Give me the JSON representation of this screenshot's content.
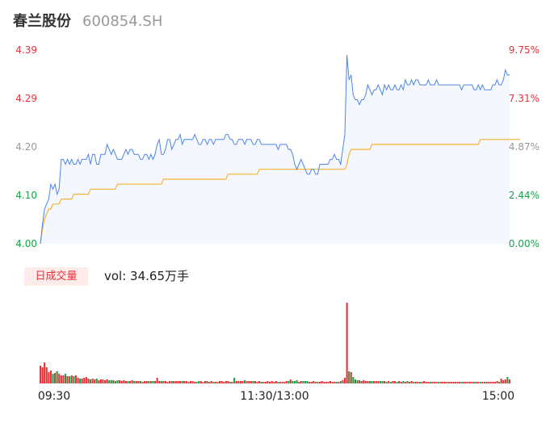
{
  "header": {
    "name": "春兰股份",
    "code": "600854.SH"
  },
  "volume_panel": {
    "tag": "日成交量",
    "vol_label": "vol: 34.65万手"
  },
  "colors": {
    "price_line": "#4f86e6",
    "avg_line": "#f5b335",
    "area_fill": "#f4f7fd",
    "up": "#e8333a",
    "down": "#16a34a",
    "neutral": "#999999"
  },
  "chart_data": {
    "type": "line",
    "prev_close": 4.0,
    "y_ticks_left": [
      "4.39",
      "4.29",
      "4.20",
      "4.10",
      "4.00"
    ],
    "y_ticks_right": [
      "9.75%",
      "7.31%",
      "4.87%",
      "2.44%",
      "0.00%"
    ],
    "ylim": [
      4.0,
      4.39
    ],
    "time_labels": [
      "09:30",
      "11:30/13:00",
      "15:00"
    ],
    "series": [
      {
        "name": "price",
        "values": [
          4.0,
          4.04,
          4.07,
          4.08,
          4.09,
          4.12,
          4.11,
          4.12,
          4.1,
          4.11,
          4.17,
          4.17,
          4.16,
          4.17,
          4.16,
          4.17,
          4.16,
          4.16,
          4.17,
          4.16,
          4.17,
          4.17,
          4.17,
          4.18,
          4.16,
          4.18,
          4.18,
          4.16,
          4.16,
          4.18,
          4.18,
          4.18,
          4.2,
          4.19,
          4.18,
          4.19,
          4.18,
          4.17,
          4.17,
          4.17,
          4.18,
          4.19,
          4.18,
          4.19,
          4.19,
          4.18,
          4.18,
          4.18,
          4.17,
          4.17,
          4.18,
          4.18,
          4.17,
          4.18,
          4.17,
          4.18,
          4.2,
          4.21,
          4.18,
          4.18,
          4.19,
          4.21,
          4.21,
          4.19,
          4.2,
          4.21,
          4.21,
          4.22,
          4.2,
          4.21,
          4.21,
          4.21,
          4.21,
          4.21,
          4.22,
          4.21,
          4.2,
          4.2,
          4.21,
          4.21,
          4.2,
          4.21,
          4.21,
          4.2,
          4.21,
          4.21,
          4.21,
          4.21,
          4.21,
          4.22,
          4.22,
          4.21,
          4.21,
          4.2,
          4.2,
          4.21,
          4.21,
          4.21,
          4.2,
          4.21,
          4.21,
          4.21,
          4.2,
          4.2,
          4.21,
          4.21,
          4.2,
          4.2,
          4.2,
          4.2,
          4.2,
          4.2,
          4.2,
          4.2,
          4.19,
          4.2,
          4.2,
          4.2,
          4.2,
          4.19,
          4.19,
          4.18,
          4.16,
          4.15,
          4.16,
          4.17,
          4.16,
          4.15,
          4.14,
          4.14,
          4.15,
          4.15,
          4.14,
          4.14,
          4.16,
          4.16,
          4.16,
          4.16,
          4.16,
          4.17,
          4.17,
          4.18,
          4.17,
          4.17,
          4.16,
          4.19,
          4.22,
          4.38,
          4.33,
          4.34,
          4.3,
          4.29,
          4.29,
          4.28,
          4.29,
          4.29,
          4.3,
          4.32,
          4.31,
          4.3,
          4.31,
          4.31,
          4.32,
          4.31,
          4.3,
          4.32,
          4.31,
          4.32,
          4.31,
          4.31,
          4.32,
          4.31,
          4.31,
          4.32,
          4.31,
          4.33,
          4.32,
          4.32,
          4.33,
          4.32,
          4.33,
          4.33,
          4.32,
          4.32,
          4.32,
          4.32,
          4.33,
          4.32,
          4.32,
          4.32,
          4.33,
          4.32,
          4.32,
          4.32,
          4.32,
          4.32,
          4.32,
          4.32,
          4.32,
          4.32,
          4.32,
          4.32,
          4.31,
          4.32,
          4.32,
          4.32,
          4.32,
          4.32,
          4.31,
          4.31,
          4.32,
          4.31,
          4.32,
          4.31,
          4.31,
          4.31,
          4.31,
          4.32,
          4.32,
          4.33,
          4.32,
          4.32,
          4.33,
          4.35,
          4.34,
          4.34
        ]
      },
      {
        "name": "average",
        "values": [
          4.0,
          4.03,
          4.05,
          4.06,
          4.07,
          4.07,
          4.08,
          4.08,
          4.08,
          4.08,
          4.09,
          4.09,
          4.09,
          4.09,
          4.09,
          4.09,
          4.1,
          4.1,
          4.1,
          4.1,
          4.1,
          4.1,
          4.1,
          4.1,
          4.11,
          4.11,
          4.11,
          4.11,
          4.11,
          4.11,
          4.11,
          4.11,
          4.11,
          4.11,
          4.11,
          4.11,
          4.11,
          4.12,
          4.12,
          4.12,
          4.12,
          4.12,
          4.12,
          4.12,
          4.12,
          4.12,
          4.12,
          4.12,
          4.12,
          4.12,
          4.12,
          4.12,
          4.12,
          4.12,
          4.12,
          4.12,
          4.12,
          4.12,
          4.12,
          4.13,
          4.13,
          4.13,
          4.13,
          4.13,
          4.13,
          4.13,
          4.13,
          4.13,
          4.13,
          4.13,
          4.13,
          4.13,
          4.13,
          4.13,
          4.13,
          4.13,
          4.13,
          4.13,
          4.13,
          4.13,
          4.13,
          4.13,
          4.13,
          4.13,
          4.13,
          4.13,
          4.13,
          4.13,
          4.13,
          4.13,
          4.14,
          4.14,
          4.14,
          4.14,
          4.14,
          4.14,
          4.14,
          4.14,
          4.14,
          4.14,
          4.14,
          4.14,
          4.14,
          4.14,
          4.14,
          4.15,
          4.15,
          4.15,
          4.15,
          4.15,
          4.15,
          4.15,
          4.15,
          4.15,
          4.15,
          4.15,
          4.15,
          4.15,
          4.15,
          4.15,
          4.15,
          4.15,
          4.15,
          4.15,
          4.15,
          4.15,
          4.15,
          4.15,
          4.15,
          4.15,
          4.15,
          4.15,
          4.15,
          4.15,
          4.15,
          4.15,
          4.15,
          4.15,
          4.15,
          4.15,
          4.15,
          4.15,
          4.15,
          4.15,
          4.15,
          4.15,
          4.15,
          4.16,
          4.18,
          4.19,
          4.19,
          4.19,
          4.19,
          4.19,
          4.19,
          4.19,
          4.19,
          4.19,
          4.19,
          4.2,
          4.2,
          4.2,
          4.2,
          4.2,
          4.2,
          4.2,
          4.2,
          4.2,
          4.2,
          4.2,
          4.2,
          4.2,
          4.2,
          4.2,
          4.2,
          4.2,
          4.2,
          4.2,
          4.2,
          4.2,
          4.2,
          4.2,
          4.2,
          4.2,
          4.2,
          4.2,
          4.2,
          4.2,
          4.2,
          4.2,
          4.2,
          4.2,
          4.2,
          4.2,
          4.2,
          4.2,
          4.2,
          4.2,
          4.2,
          4.2,
          4.2,
          4.2,
          4.2,
          4.2,
          4.2,
          4.2,
          4.2,
          4.2,
          4.2,
          4.2,
          4.2,
          4.21,
          4.21,
          4.21,
          4.21,
          4.21,
          4.21,
          4.21,
          4.21,
          4.21,
          4.21,
          4.21,
          4.21,
          4.21,
          4.21,
          4.21,
          4.21,
          4.21,
          4.21,
          4.21,
          4.21
        ]
      }
    ],
    "volume": [
      0.22,
      0.2,
      0.26,
      0.2,
      0.14,
      0.16,
      0.12,
      0.13,
      0.15,
      0.12,
      0.1,
      0.1,
      0.12,
      0.09,
      0.09,
      0.1,
      0.09,
      0.1,
      0.07,
      0.06,
      0.06,
      0.07,
      0.08,
      0.06,
      0.05,
      0.06,
      0.05,
      0.06,
      0.04,
      0.05,
      0.05,
      0.04,
      0.05,
      0.04,
      0.04,
      0.04,
      0.03,
      0.04,
      0.04,
      0.03,
      0.04,
      0.03,
      0.03,
      0.03,
      0.04,
      0.03,
      0.03,
      0.03,
      0.03,
      0.02,
      0.03,
      0.03,
      0.03,
      0.03,
      0.03,
      0.03,
      0.07,
      0.03,
      0.03,
      0.03,
      0.03,
      0.02,
      0.03,
      0.03,
      0.03,
      0.03,
      0.03,
      0.03,
      0.03,
      0.03,
      0.03,
      0.02,
      0.03,
      0.03,
      0.02,
      0.02,
      0.03,
      0.03,
      0.02,
      0.03,
      0.03,
      0.02,
      0.03,
      0.02,
      0.02,
      0.02,
      0.03,
      0.03,
      0.02,
      0.03,
      0.03,
      0.02,
      0.02,
      0.07,
      0.03,
      0.03,
      0.03,
      0.03,
      0.04,
      0.03,
      0.03,
      0.03,
      0.03,
      0.03,
      0.02,
      0.03,
      0.02,
      0.02,
      0.02,
      0.03,
      0.02,
      0.03,
      0.02,
      0.03,
      0.02,
      0.02,
      0.02,
      0.02,
      0.03,
      0.03,
      0.05,
      0.03,
      0.03,
      0.04,
      0.02,
      0.03,
      0.03,
      0.03,
      0.03,
      0.02,
      0.02,
      0.03,
      0.02,
      0.02,
      0.02,
      0.03,
      0.02,
      0.02,
      0.02,
      0.03,
      0.02,
      0.02,
      0.02,
      0.02,
      0.03,
      0.04,
      0.07,
      1.0,
      0.15,
      0.14,
      0.08,
      0.05,
      0.04,
      0.04,
      0.03,
      0.04,
      0.03,
      0.03,
      0.03,
      0.03,
      0.03,
      0.03,
      0.03,
      0.03,
      0.03,
      0.03,
      0.02,
      0.03,
      0.02,
      0.03,
      0.03,
      0.02,
      0.03,
      0.02,
      0.03,
      0.02,
      0.03,
      0.02,
      0.03,
      0.02,
      0.02,
      0.02,
      0.02,
      0.02,
      0.03,
      0.02,
      0.02,
      0.02,
      0.02,
      0.02,
      0.02,
      0.02,
      0.02,
      0.02,
      0.02,
      0.02,
      0.02,
      0.02,
      0.02,
      0.02,
      0.02,
      0.02,
      0.02,
      0.02,
      0.02,
      0.02,
      0.02,
      0.02,
      0.02,
      0.02,
      0.02,
      0.02,
      0.02,
      0.02,
      0.02,
      0.02,
      0.02,
      0.02,
      0.02,
      0.03,
      0.02,
      0.06,
      0.04,
      0.05,
      0.08,
      0.05
    ]
  }
}
